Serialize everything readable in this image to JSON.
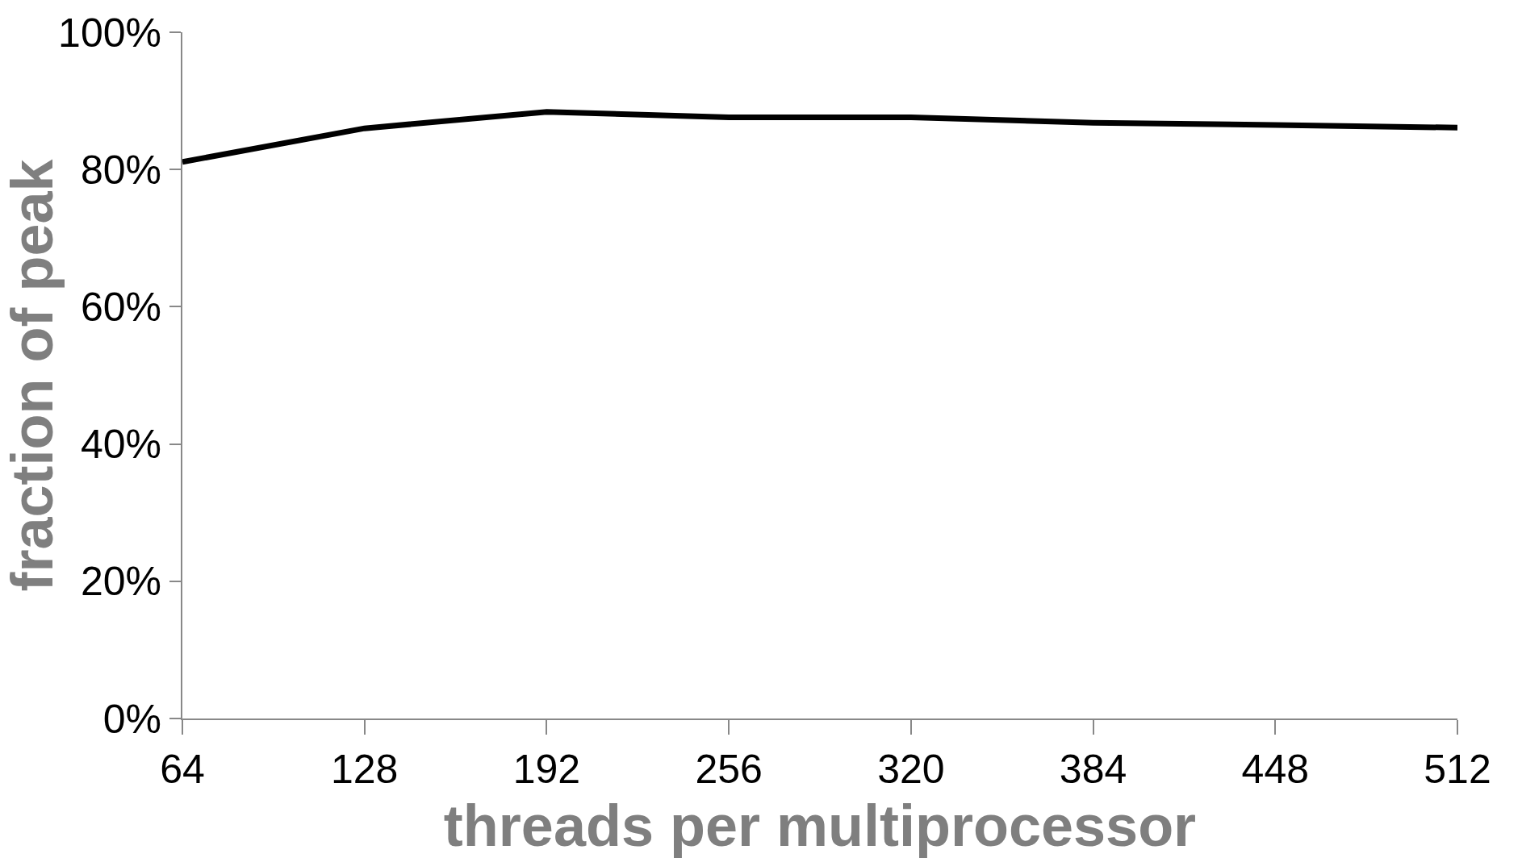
{
  "chart_data": {
    "type": "line",
    "xlabel": "threads per multiprocessor",
    "ylabel": "fraction of peak",
    "x": [
      64,
      128,
      192,
      256,
      320,
      384,
      448,
      512
    ],
    "series": [
      {
        "color": "#000000",
        "values": [
          81.1,
          86.0,
          88.4,
          87.6,
          87.6,
          86.8,
          86.5,
          86.1
        ]
      }
    ],
    "xlim": [
      64,
      512
    ],
    "xticks": [
      64,
      128,
      192,
      256,
      320,
      384,
      448,
      512
    ],
    "ylim": [
      0,
      100
    ],
    "yticks": [
      {
        "value": 0,
        "label": "0%"
      },
      {
        "value": 20,
        "label": "20%"
      },
      {
        "value": 40,
        "label": "40%"
      },
      {
        "value": 60,
        "label": "60%"
      },
      {
        "value": 80,
        "label": "80%"
      },
      {
        "value": 100,
        "label": "100%"
      }
    ],
    "legend": false,
    "marker": "none",
    "line_style": "solid"
  }
}
